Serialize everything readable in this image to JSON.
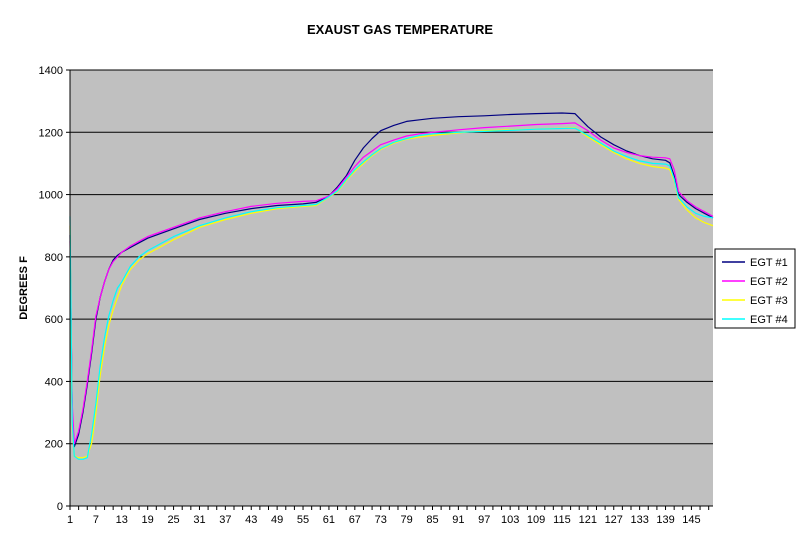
{
  "chart_data": {
    "type": "line",
    "title": "EXAUST GAS TEMPERATURE",
    "ylabel": "DEGREES F",
    "xlabel": "",
    "ylim": [
      0,
      1400
    ],
    "yticks": [
      0,
      200,
      400,
      600,
      800,
      1000,
      1200,
      1400
    ],
    "xlim": [
      1,
      150
    ],
    "xticks": [
      1,
      7,
      13,
      19,
      25,
      31,
      37,
      43,
      49,
      55,
      61,
      67,
      73,
      79,
      85,
      91,
      97,
      103,
      109,
      115,
      121,
      127,
      133,
      139,
      145
    ],
    "grid": "horizontal",
    "legend": "right",
    "plot_background": "#c0c0c0",
    "series": [
      {
        "name": "EGT #1",
        "color": "#000080",
        "x": [
          1,
          1.5,
          2,
          3,
          4,
          5,
          6,
          7,
          8,
          9,
          10,
          11,
          12,
          13,
          15,
          17,
          19,
          21,
          25,
          31,
          37,
          43,
          49,
          55,
          58,
          61,
          63,
          65,
          67,
          69,
          71,
          73,
          76,
          79,
          82,
          85,
          91,
          97,
          103,
          109,
          115,
          118,
          121,
          124,
          127,
          130,
          133,
          136,
          139,
          140,
          141,
          142,
          144,
          146,
          148,
          150
        ],
        "values": [
          870,
          300,
          190,
          230,
          300,
          390,
          490,
          600,
          670,
          720,
          760,
          790,
          805,
          815,
          830,
          845,
          860,
          870,
          890,
          920,
          940,
          955,
          965,
          970,
          975,
          995,
          1025,
          1060,
          1110,
          1150,
          1180,
          1205,
          1222,
          1235,
          1240,
          1245,
          1250,
          1253,
          1257,
          1260,
          1262,
          1260,
          1218,
          1185,
          1160,
          1140,
          1125,
          1115,
          1110,
          1102,
          1060,
          1000,
          975,
          955,
          940,
          925
        ]
      },
      {
        "name": "EGT #2",
        "color": "#ff00ff",
        "x": [
          1,
          1.5,
          2,
          3,
          4,
          5,
          6,
          7,
          8,
          9,
          10,
          11,
          12,
          13,
          15,
          17,
          19,
          21,
          25,
          31,
          37,
          43,
          49,
          55,
          58,
          61,
          63,
          65,
          67,
          69,
          71,
          73,
          76,
          79,
          82,
          85,
          91,
          97,
          103,
          109,
          115,
          118,
          121,
          124,
          127,
          130,
          133,
          136,
          139,
          140,
          141,
          142,
          144,
          146,
          148,
          150
        ],
        "values": [
          850,
          330,
          200,
          240,
          310,
          400,
          500,
          610,
          670,
          720,
          760,
          785,
          800,
          815,
          835,
          850,
          865,
          875,
          895,
          925,
          945,
          962,
          972,
          978,
          980,
          995,
          1020,
          1055,
          1090,
          1120,
          1140,
          1160,
          1175,
          1188,
          1195,
          1200,
          1208,
          1215,
          1220,
          1225,
          1228,
          1230,
          1205,
          1175,
          1150,
          1135,
          1125,
          1120,
          1118,
          1115,
          1080,
          1010,
          980,
          960,
          945,
          930
        ]
      },
      {
        "name": "EGT #3",
        "color": "#ffff00",
        "x": [
          1,
          1.5,
          2,
          3,
          4,
          5,
          6,
          7,
          8,
          9,
          10,
          11,
          12,
          13,
          15,
          17,
          19,
          21,
          25,
          31,
          37,
          43,
          49,
          55,
          58,
          61,
          63,
          65,
          67,
          69,
          71,
          73,
          76,
          79,
          82,
          85,
          91,
          97,
          103,
          109,
          115,
          118,
          121,
          124,
          127,
          130,
          133,
          136,
          139,
          140,
          141,
          142,
          144,
          146,
          148,
          150
        ],
        "values": [
          900,
          250,
          160,
          155,
          155,
          160,
          200,
          300,
          420,
          510,
          580,
          630,
          670,
          710,
          760,
          790,
          810,
          825,
          855,
          895,
          920,
          940,
          955,
          962,
          965,
          992,
          1010,
          1045,
          1075,
          1100,
          1125,
          1145,
          1165,
          1178,
          1185,
          1190,
          1198,
          1205,
          1208,
          1210,
          1213,
          1215,
          1185,
          1160,
          1135,
          1115,
          1100,
          1090,
          1085,
          1080,
          1045,
          985,
          950,
          925,
          910,
          900
        ]
      },
      {
        "name": "EGT #4",
        "color": "#00ffff",
        "x": [
          1,
          1.5,
          2,
          3,
          4,
          5,
          6,
          7,
          8,
          9,
          10,
          11,
          12,
          13,
          15,
          17,
          19,
          21,
          25,
          31,
          37,
          43,
          49,
          55,
          58,
          61,
          63,
          65,
          67,
          69,
          71,
          73,
          76,
          79,
          82,
          85,
          91,
          97,
          103,
          109,
          115,
          118,
          121,
          124,
          127,
          130,
          133,
          136,
          139,
          140,
          141,
          142,
          144,
          146,
          148,
          150
        ],
        "values": [
          930,
          270,
          160,
          150,
          150,
          155,
          230,
          330,
          450,
          540,
          610,
          660,
          700,
          720,
          770,
          800,
          820,
          835,
          865,
          900,
          925,
          945,
          958,
          965,
          968,
          993,
          1012,
          1048,
          1080,
          1105,
          1128,
          1148,
          1168,
          1180,
          1190,
          1195,
          1200,
          1203,
          1206,
          1210,
          1212,
          1213,
          1190,
          1165,
          1140,
          1122,
          1108,
          1100,
          1098,
          1092,
          1050,
          990,
          960,
          940,
          930,
          925
        ]
      }
    ]
  }
}
